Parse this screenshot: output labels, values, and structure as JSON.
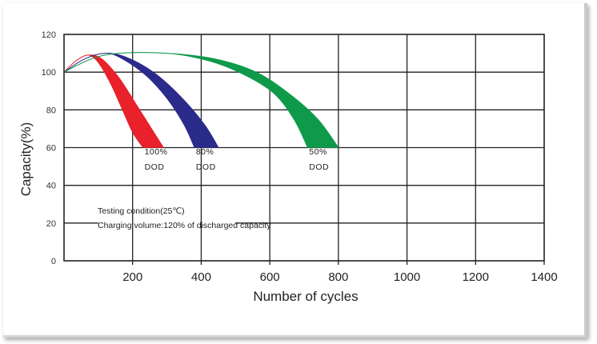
{
  "chart_data": {
    "type": "area",
    "xlabel": "Number of cycles",
    "ylabel": "Capacity(%)",
    "xlim": [
      0,
      1400
    ],
    "ylim": [
      0,
      120
    ],
    "x_ticks": [
      "200",
      "400",
      "600",
      "800",
      "1000",
      "1200",
      "1400"
    ],
    "y_ticks": [
      "0",
      "20",
      "40",
      "60",
      "80",
      "100",
      "120"
    ],
    "grid": true,
    "series": [
      {
        "label": [
          "100%",
          "DOD"
        ],
        "color": "#e8212b",
        "upper": [
          [
            0,
            100
          ],
          [
            35,
            106
          ],
          [
            70,
            109
          ],
          [
            110,
            107
          ],
          [
            160,
            97
          ],
          [
            210,
            83
          ],
          [
            255,
            70
          ],
          [
            290,
            60
          ]
        ],
        "lower": [
          [
            0,
            100
          ],
          [
            35,
            106
          ],
          [
            70,
            109
          ],
          [
            100,
            105
          ],
          [
            135,
            94
          ],
          [
            170,
            80
          ],
          [
            200,
            68
          ],
          [
            230,
            60
          ]
        ]
      },
      {
        "label": [
          "80%",
          "DOD"
        ],
        "color": "#2b2b8c",
        "upper": [
          [
            0,
            100
          ],
          [
            60,
            107
          ],
          [
            120,
            110
          ],
          [
            180,
            108
          ],
          [
            260,
            100
          ],
          [
            340,
            87
          ],
          [
            410,
            72
          ],
          [
            450,
            60
          ]
        ],
        "lower": [
          [
            0,
            100
          ],
          [
            60,
            107
          ],
          [
            120,
            110
          ],
          [
            170,
            107
          ],
          [
            240,
            98
          ],
          [
            300,
            86
          ],
          [
            350,
            72
          ],
          [
            380,
            60
          ]
        ]
      },
      {
        "label": [
          "50%",
          "DOD"
        ],
        "color": "#0e9a4a",
        "upper": [
          [
            0,
            100
          ],
          [
            80,
            107
          ],
          [
            160,
            110
          ],
          [
            300,
            110
          ],
          [
            440,
            107
          ],
          [
            560,
            100
          ],
          [
            660,
            88
          ],
          [
            740,
            75
          ],
          [
            800,
            60
          ]
        ],
        "lower": [
          [
            0,
            100
          ],
          [
            80,
            107
          ],
          [
            160,
            110
          ],
          [
            300,
            110
          ],
          [
            420,
            106
          ],
          [
            520,
            99
          ],
          [
            610,
            89
          ],
          [
            670,
            75
          ],
          [
            710,
            60
          ]
        ]
      }
    ],
    "annotations": [
      "Testing condition(25℃)",
      "Charging volume:120% of discharged capacity"
    ]
  }
}
